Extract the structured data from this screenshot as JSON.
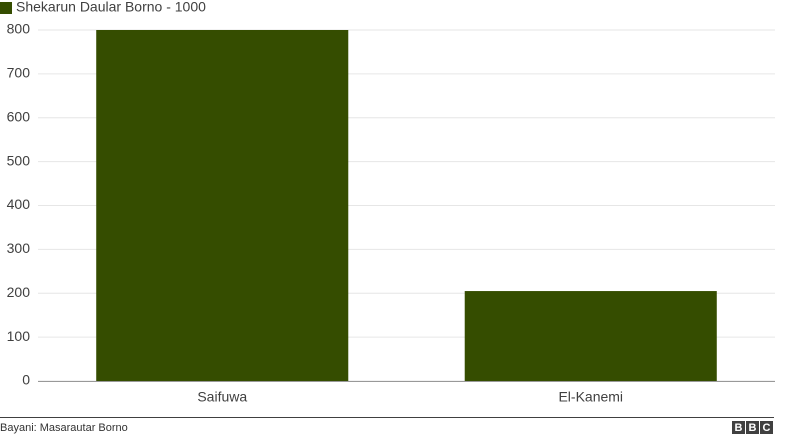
{
  "chart_data": {
    "type": "bar",
    "categories": [
      "Saifuwa",
      "El-Kanemi"
    ],
    "series": [
      {
        "name": "Shekarun Daular Borno - 1000",
        "color": "#354d00",
        "values": [
          800,
          205
        ]
      }
    ],
    "ylim": [
      0,
      800
    ],
    "yticks": [
      0,
      100,
      200,
      300,
      400,
      500,
      600,
      700,
      800
    ],
    "grid": true,
    "legend": "top-left",
    "source": "Bayani: Masarautar Borno",
    "logo": [
      "B",
      "B",
      "C"
    ]
  }
}
